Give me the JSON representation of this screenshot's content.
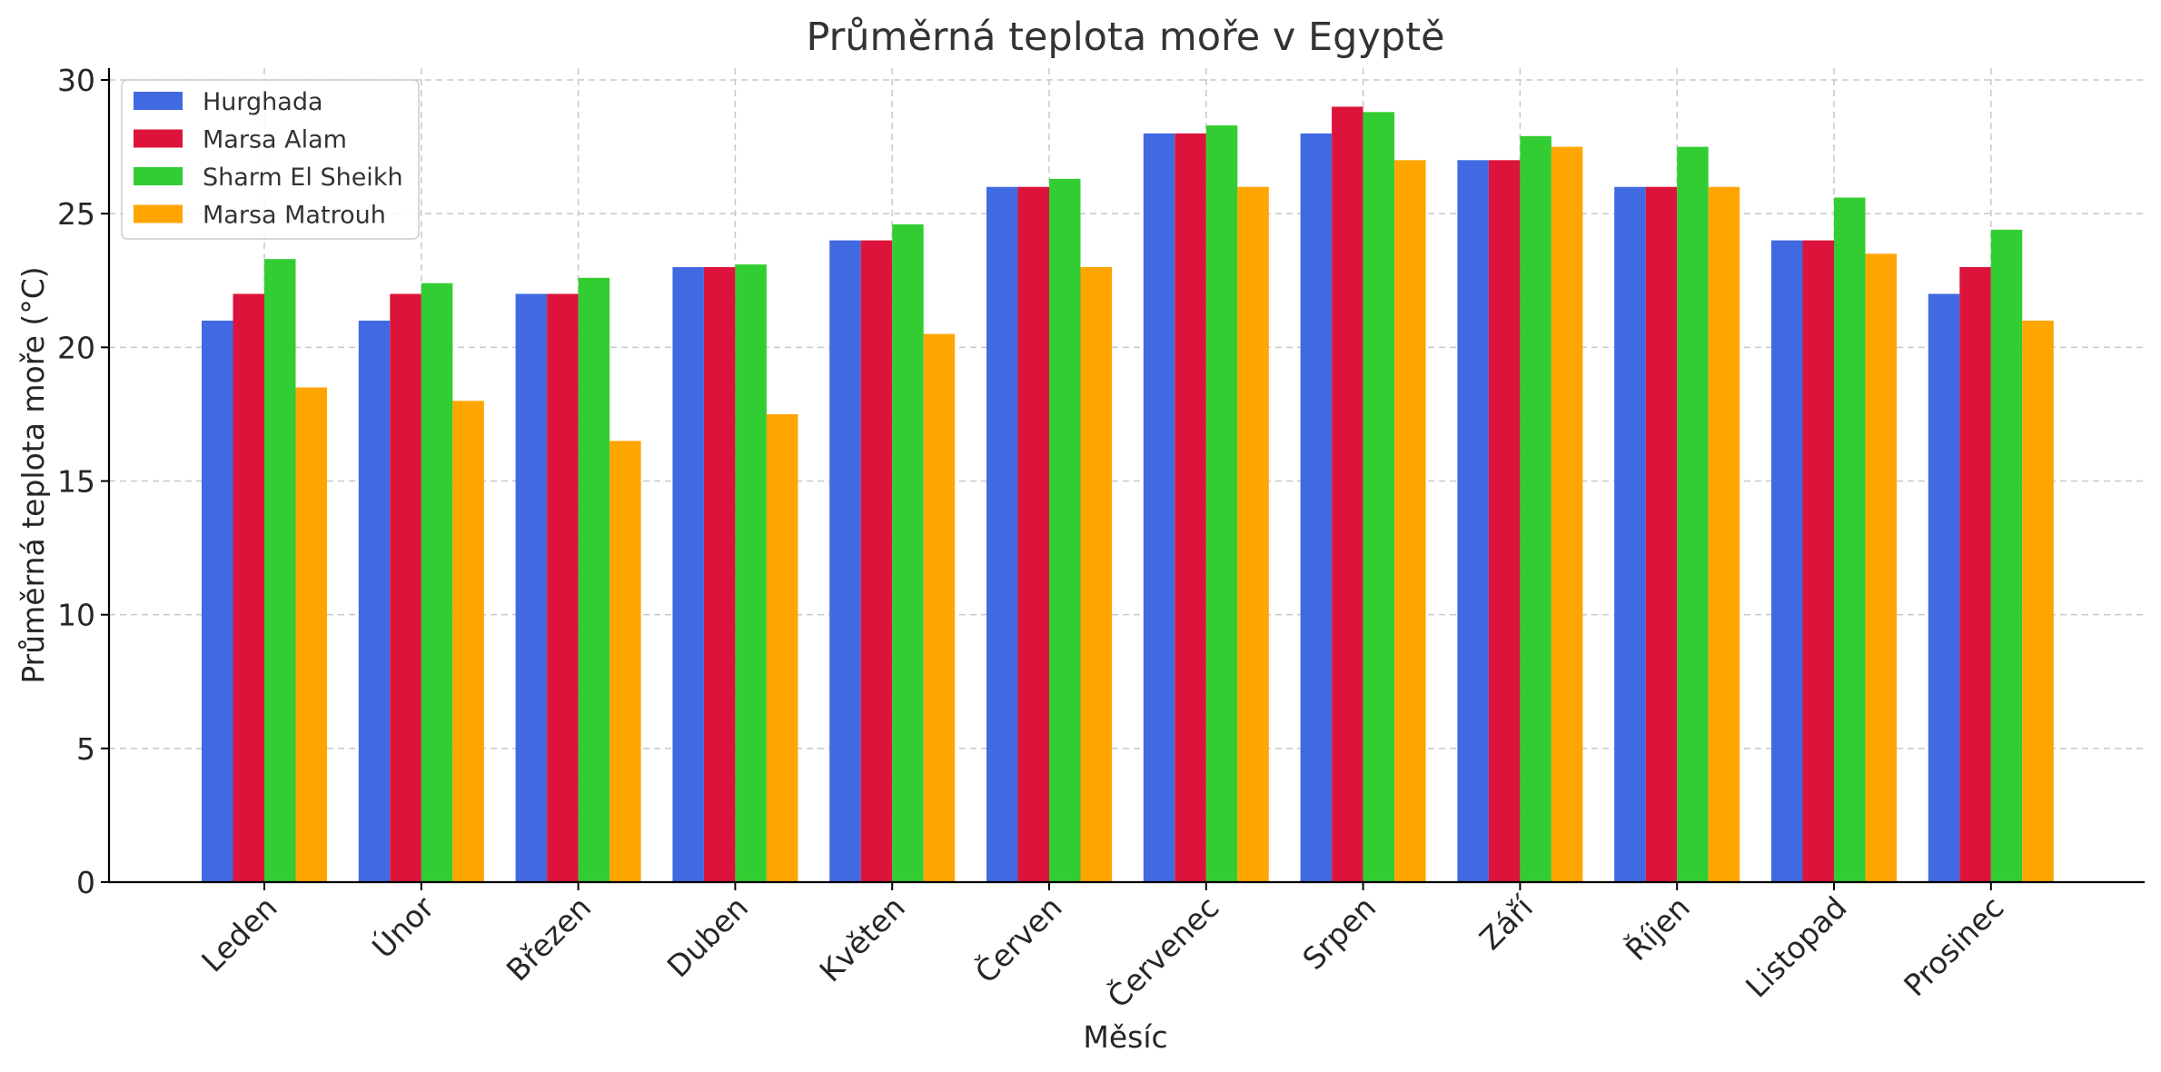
{
  "chart_data": {
    "type": "bar",
    "title": "Průměrná teplota moře v Egyptě",
    "xlabel": "Měsíc",
    "ylabel": "Průměrná teplota moře (°C)",
    "ylim": [
      0,
      30
    ],
    "yticks": [
      0,
      5,
      10,
      15,
      20,
      25,
      30
    ],
    "grid": true,
    "legend_position": "top-left",
    "categories": [
      "Leden",
      "Únor",
      "Březen",
      "Duben",
      "Květen",
      "Červen",
      "Červenec",
      "Srpen",
      "Září",
      "Říjen",
      "Listopad",
      "Prosinec"
    ],
    "series": [
      {
        "name": "Hurghada",
        "color": "#4169e1",
        "values": [
          21,
          21,
          22,
          23,
          24,
          26,
          28,
          28,
          27,
          26,
          24,
          22
        ]
      },
      {
        "name": "Marsa Alam",
        "color": "#dc143c",
        "values": [
          22,
          22,
          22,
          23,
          24,
          26,
          28,
          29,
          27,
          26,
          24,
          23
        ]
      },
      {
        "name": "Sharm El Sheikh",
        "color": "#32cd32",
        "values": [
          23.3,
          22.4,
          22.6,
          23.1,
          24.6,
          26.3,
          28.3,
          28.8,
          27.9,
          27.5,
          25.6,
          24.4
        ]
      },
      {
        "name": "Marsa Matrouh",
        "color": "#ffa500",
        "values": [
          18.5,
          18,
          16.5,
          17.5,
          20.5,
          23,
          26,
          27,
          27.5,
          26,
          23.5,
          21
        ]
      }
    ]
  }
}
